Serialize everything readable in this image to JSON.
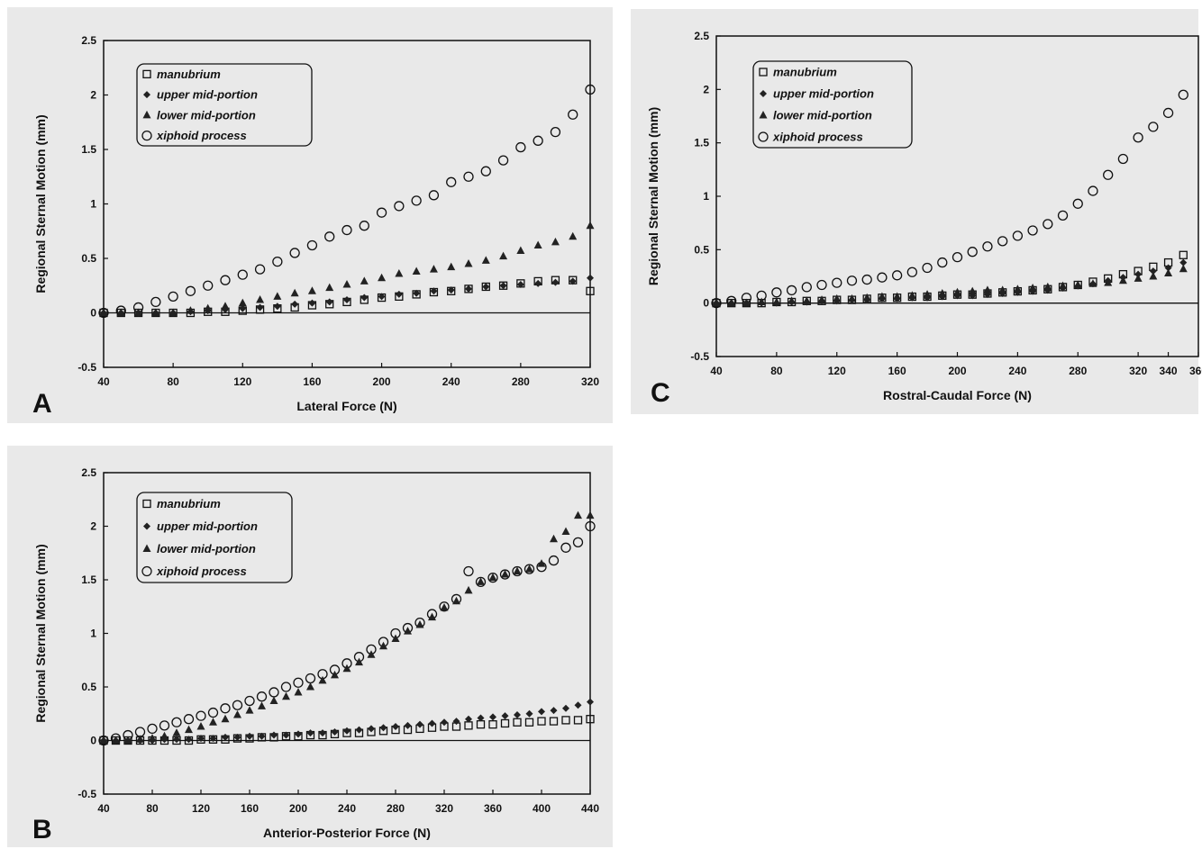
{
  "panels": [
    {
      "letter": "A"
    },
    {
      "letter": "C"
    },
    {
      "letter": "B"
    }
  ],
  "chart_data": [
    {
      "type": "scatter",
      "panel": "A",
      "xlabel": "Lateral Force (N)",
      "ylabel": "Regional Sternal Motion (mm)",
      "xlim": [
        40,
        320
      ],
      "ylim": [
        -0.5,
        2.5
      ],
      "xticks": [
        40,
        80,
        120,
        160,
        200,
        240,
        280,
        320
      ],
      "yticks": [
        -0.5,
        0,
        0.5,
        1,
        1.5,
        2,
        2.5
      ],
      "x": [
        40,
        50,
        60,
        70,
        80,
        90,
        100,
        110,
        120,
        130,
        140,
        150,
        160,
        170,
        180,
        190,
        200,
        210,
        220,
        230,
        240,
        250,
        260,
        270,
        280,
        290,
        300,
        310,
        320
      ],
      "legend_position": "top-left",
      "series": [
        {
          "name": "manubrium",
          "marker": "open-square",
          "values": [
            0,
            0,
            0,
            0,
            0,
            0,
            0.01,
            0.01,
            0.02,
            0.03,
            0.04,
            0.05,
            0.07,
            0.08,
            0.1,
            0.12,
            0.14,
            0.15,
            0.17,
            0.19,
            0.2,
            0.22,
            0.24,
            0.25,
            0.27,
            0.29,
            0.3,
            0.3,
            0.2
          ]
        },
        {
          "name": "upper mid-portion",
          "marker": "filled-diamond",
          "values": [
            0,
            0,
            0,
            0,
            0,
            0.01,
            0.02,
            0.03,
            0.04,
            0.05,
            0.06,
            0.08,
            0.09,
            0.1,
            0.12,
            0.14,
            0.15,
            0.17,
            0.18,
            0.2,
            0.21,
            0.22,
            0.24,
            0.25,
            0.26,
            0.27,
            0.28,
            0.29,
            0.32
          ]
        },
        {
          "name": "lower mid-portion",
          "marker": "filled-triangle",
          "values": [
            0,
            0,
            0,
            0,
            0,
            0.02,
            0.04,
            0.06,
            0.09,
            0.12,
            0.15,
            0.18,
            0.2,
            0.23,
            0.26,
            0.29,
            0.32,
            0.36,
            0.38,
            0.4,
            0.42,
            0.45,
            0.48,
            0.52,
            0.57,
            0.62,
            0.65,
            0.7,
            0.8
          ]
        },
        {
          "name": "xiphoid process",
          "marker": "open-circle",
          "values": [
            0,
            0.02,
            0.05,
            0.1,
            0.15,
            0.2,
            0.25,
            0.3,
            0.35,
            0.4,
            0.47,
            0.55,
            0.62,
            0.7,
            0.76,
            0.8,
            0.92,
            0.98,
            1.03,
            1.08,
            1.2,
            1.25,
            1.3,
            1.4,
            1.52,
            1.58,
            1.66,
            1.82,
            2.05
          ]
        }
      ]
    },
    {
      "type": "scatter",
      "panel": "C",
      "xlabel": "Rostral-Caudal Force (N)",
      "ylabel": "Regional Sternal Motion (mm)",
      "xlim": [
        40,
        360
      ],
      "ylim": [
        -0.5,
        2.5
      ],
      "xticks": [
        40,
        80,
        120,
        160,
        200,
        240,
        280,
        320,
        340,
        360
      ],
      "yticks": [
        -0.5,
        0,
        0.5,
        1,
        1.5,
        2,
        2.5
      ],
      "x": [
        40,
        50,
        60,
        70,
        80,
        90,
        100,
        110,
        120,
        130,
        140,
        150,
        160,
        170,
        180,
        190,
        200,
        210,
        220,
        230,
        240,
        250,
        260,
        270,
        280,
        290,
        300,
        310,
        320,
        330,
        340,
        350
      ],
      "legend_position": "top-left",
      "series": [
        {
          "name": "manubrium",
          "marker": "open-square",
          "values": [
            0,
            0,
            0,
            0,
            0.01,
            0.01,
            0.02,
            0.02,
            0.03,
            0.03,
            0.04,
            0.05,
            0.05,
            0.06,
            0.06,
            0.07,
            0.08,
            0.08,
            0.09,
            0.1,
            0.11,
            0.12,
            0.13,
            0.15,
            0.17,
            0.2,
            0.23,
            0.27,
            0.3,
            0.34,
            0.38,
            0.45
          ]
        },
        {
          "name": "upper mid-portion",
          "marker": "filled-diamond",
          "values": [
            0,
            0,
            0,
            0,
            0,
            0.01,
            0.01,
            0.02,
            0.02,
            0.03,
            0.03,
            0.04,
            0.04,
            0.05,
            0.05,
            0.06,
            0.07,
            0.07,
            0.08,
            0.09,
            0.1,
            0.11,
            0.12,
            0.14,
            0.16,
            0.18,
            0.21,
            0.24,
            0.27,
            0.3,
            0.33,
            0.38
          ]
        },
        {
          "name": "lower mid-portion",
          "marker": "filled-triangle",
          "values": [
            0,
            0,
            0,
            0.01,
            0.01,
            0.02,
            0.02,
            0.03,
            0.04,
            0.04,
            0.05,
            0.06,
            0.06,
            0.07,
            0.08,
            0.09,
            0.1,
            0.11,
            0.12,
            0.12,
            0.13,
            0.14,
            0.15,
            0.16,
            0.17,
            0.18,
            0.19,
            0.21,
            0.23,
            0.25,
            0.28,
            0.32
          ]
        },
        {
          "name": "xiphoid process",
          "marker": "open-circle",
          "values": [
            0,
            0.02,
            0.05,
            0.07,
            0.1,
            0.12,
            0.15,
            0.17,
            0.19,
            0.21,
            0.22,
            0.24,
            0.26,
            0.29,
            0.33,
            0.38,
            0.43,
            0.48,
            0.53,
            0.58,
            0.63,
            0.68,
            0.74,
            0.82,
            0.93,
            1.05,
            1.2,
            1.35,
            1.55,
            1.65,
            1.78,
            1.95
          ]
        }
      ]
    },
    {
      "type": "scatter",
      "panel": "B",
      "xlabel": "Anterior-Posterior Force (N)",
      "ylabel": "Regional Sternal Motion (mm)",
      "xlim": [
        40,
        440
      ],
      "ylim": [
        -0.5,
        2.5
      ],
      "xticks": [
        40,
        80,
        120,
        160,
        200,
        240,
        280,
        320,
        360,
        400,
        440
      ],
      "yticks": [
        -0.5,
        0,
        0.5,
        1,
        1.5,
        2,
        2.5
      ],
      "x": [
        40,
        50,
        60,
        70,
        80,
        90,
        100,
        110,
        120,
        130,
        140,
        150,
        160,
        170,
        180,
        190,
        200,
        210,
        220,
        230,
        240,
        250,
        260,
        270,
        280,
        290,
        300,
        310,
        320,
        330,
        340,
        350,
        360,
        370,
        380,
        390,
        400,
        410,
        420,
        430,
        440
      ],
      "legend_position": "top-left",
      "series": [
        {
          "name": "manubrium",
          "marker": "open-square",
          "values": [
            0,
            0,
            0,
            0,
            0,
            0,
            0,
            0,
            0.01,
            0.01,
            0.01,
            0.02,
            0.02,
            0.03,
            0.03,
            0.04,
            0.04,
            0.05,
            0.05,
            0.06,
            0.07,
            0.07,
            0.08,
            0.09,
            0.1,
            0.1,
            0.11,
            0.12,
            0.13,
            0.13,
            0.14,
            0.15,
            0.15,
            0.16,
            0.17,
            0.17,
            0.18,
            0.18,
            0.19,
            0.19,
            0.2
          ]
        },
        {
          "name": "upper mid-portion",
          "marker": "filled-diamond",
          "values": [
            0,
            0,
            0,
            0,
            0,
            0.01,
            0.01,
            0.01,
            0.02,
            0.02,
            0.03,
            0.03,
            0.04,
            0.04,
            0.05,
            0.05,
            0.06,
            0.07,
            0.07,
            0.08,
            0.09,
            0.1,
            0.11,
            0.12,
            0.13,
            0.14,
            0.15,
            0.16,
            0.17,
            0.18,
            0.2,
            0.21,
            0.22,
            0.23,
            0.24,
            0.25,
            0.27,
            0.28,
            0.3,
            0.33,
            0.36
          ]
        },
        {
          "name": "lower mid-portion",
          "marker": "filled-triangle",
          "values": [
            0,
            0,
            0,
            0.01,
            0.02,
            0.04,
            0.07,
            0.1,
            0.13,
            0.17,
            0.2,
            0.24,
            0.28,
            0.32,
            0.37,
            0.41,
            0.45,
            0.5,
            0.56,
            0.61,
            0.67,
            0.73,
            0.8,
            0.88,
            0.95,
            1.02,
            1.08,
            1.15,
            1.24,
            1.3,
            1.4,
            1.48,
            1.52,
            1.55,
            1.58,
            1.6,
            1.65,
            1.88,
            1.95,
            2.1,
            2.1
          ]
        },
        {
          "name": "xiphoid process",
          "marker": "open-circle",
          "values": [
            0,
            0.02,
            0.05,
            0.08,
            0.11,
            0.14,
            0.17,
            0.2,
            0.23,
            0.26,
            0.3,
            0.33,
            0.37,
            0.41,
            0.45,
            0.5,
            0.54,
            0.58,
            0.62,
            0.66,
            0.72,
            0.78,
            0.85,
            0.92,
            1.0,
            1.05,
            1.1,
            1.18,
            1.25,
            1.32,
            1.58,
            1.48,
            1.52,
            1.55,
            1.58,
            1.6,
            1.62,
            1.68,
            1.8,
            1.85,
            2.0
          ]
        }
      ]
    }
  ]
}
